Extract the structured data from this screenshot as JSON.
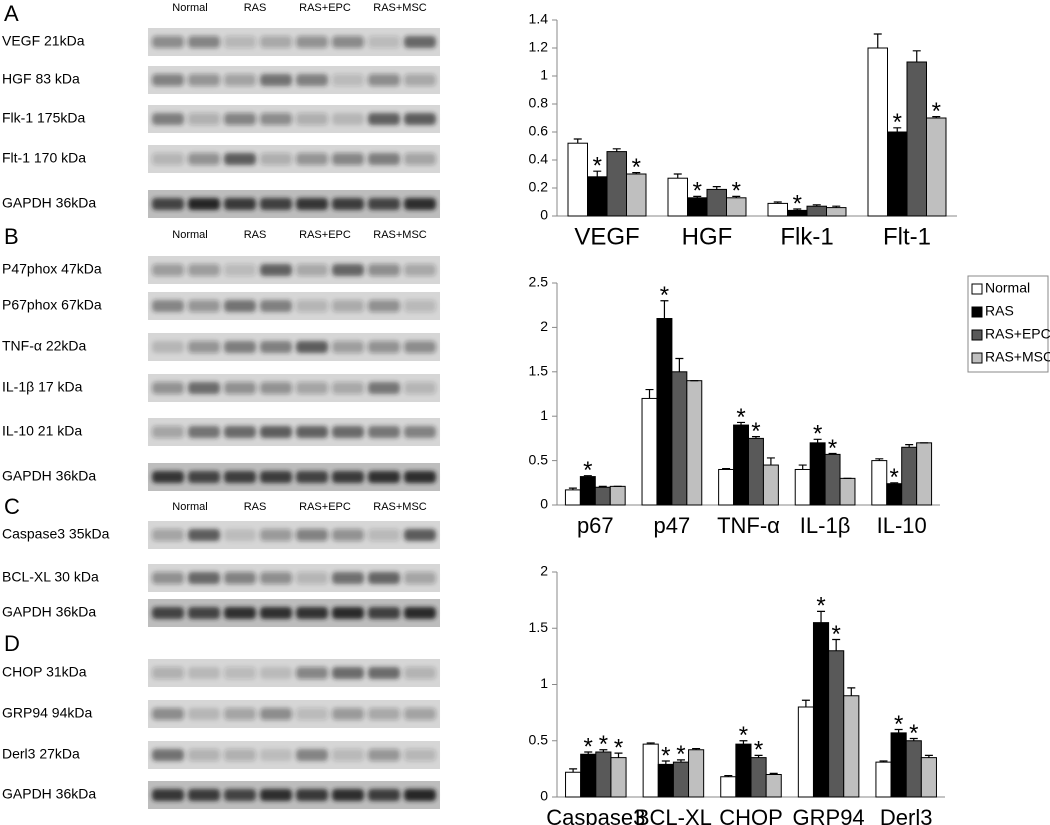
{
  "blots": [
    {
      "letter": "A",
      "lanes": [
        "Normal",
        "RAS",
        "RAS+EPC",
        "RAS+MSC"
      ],
      "rows": [
        "VEGF 21kDa",
        "HGF 83 kDa",
        "Flk-1 175kDa",
        "Flt-1 170 kDa",
        "GAPDH 36kDa"
      ]
    },
    {
      "letter": "B",
      "lanes": [
        "Normal",
        "RAS",
        "RAS+EPC",
        "RAS+MSC"
      ],
      "rows": [
        "P47phox 47kDa",
        "P67phox 67kDa",
        "TNF-α 22kDa",
        "IL-1β 17 kDa",
        "IL-10 21 kDa",
        "GAPDH 36kDa"
      ]
    },
    {
      "letter": "C",
      "lanes": [
        "Normal",
        "RAS",
        "RAS+EPC",
        "RAS+MSC"
      ],
      "rows": [
        "Caspase3 35kDa",
        "BCL-XL 30 kDa",
        "GAPDH 36kDa"
      ]
    },
    {
      "letter": "D",
      "rows": [
        "CHOP 31kDa",
        "GRP94 94kDa",
        "Derl3 27kDa",
        "GAPDH 36kDa"
      ]
    }
  ],
  "chart_data": [
    {
      "type": "bar",
      "categories": [
        "VEGF",
        "HGF",
        "Flk-1",
        "Flt-1"
      ],
      "ylim": [
        0,
        1.4
      ],
      "yticks": [
        0,
        0.2,
        0.4,
        0.6,
        0.8,
        1,
        1.2,
        1.4
      ],
      "series": [
        {
          "color": "#ffffff",
          "values": [
            0.52,
            0.27,
            0.09,
            1.2
          ],
          "errors": [
            0.03,
            0.03,
            0.01,
            0.1
          ],
          "significance": [
            null,
            null,
            null,
            null
          ]
        },
        {
          "color": "#000000",
          "values": [
            0.28,
            0.13,
            0.04,
            0.6
          ],
          "errors": [
            0.04,
            0.01,
            0.01,
            0.03
          ],
          "significance": [
            "*",
            "*",
            "*",
            "*"
          ]
        },
        {
          "color": "#595959",
          "values": [
            0.46,
            0.19,
            0.07,
            1.1
          ],
          "errors": [
            0.02,
            0.02,
            0.01,
            0.08
          ],
          "significance": [
            null,
            null,
            null,
            null
          ]
        },
        {
          "color": "#bfbfbf",
          "values": [
            0.3,
            0.13,
            0.06,
            0.7
          ],
          "errors": [
            0.01,
            0.01,
            0.01,
            0.01
          ],
          "significance": [
            "*",
            "*",
            null,
            "*"
          ]
        }
      ]
    },
    {
      "type": "bar",
      "categories": [
        "p67",
        "p47",
        "TNF-α",
        "IL-1β",
        "IL-10"
      ],
      "ylim": [
        0,
        2.5
      ],
      "yticks": [
        0,
        0.5,
        1,
        1.5,
        2,
        2.5
      ],
      "legend": "upper right",
      "series": [
        {
          "name": "Normal",
          "color": "#ffffff",
          "values": [
            0.17,
            1.2,
            0.4,
            0.4,
            0.5
          ],
          "errors": [
            0.02,
            0.1,
            0.01,
            0.05,
            0.02
          ],
          "significance": [
            null,
            null,
            null,
            null,
            null
          ]
        },
        {
          "name": "RAS",
          "color": "#000000",
          "values": [
            0.32,
            2.1,
            0.9,
            0.7,
            0.24
          ],
          "errors": [
            0.01,
            0.2,
            0.03,
            0.04,
            0.01
          ],
          "significance": [
            "*",
            "*",
            "*",
            "*",
            "*"
          ]
        },
        {
          "name": "RAS+EPC",
          "color": "#595959",
          "values": [
            0.2,
            1.5,
            0.75,
            0.57,
            0.65
          ],
          "errors": [
            0.01,
            0.15,
            0.02,
            0.01,
            0.03
          ],
          "significance": [
            null,
            null,
            "*",
            "*",
            null
          ]
        },
        {
          "name": "RAS+MSC",
          "color": "#bfbfbf",
          "values": [
            0.21,
            1.4,
            0.45,
            0.3,
            0.7
          ],
          "errors": [
            0,
            0,
            0.08,
            0,
            0
          ],
          "significance": [
            null,
            null,
            null,
            null,
            null
          ]
        }
      ]
    },
    {
      "type": "bar",
      "categories": [
        "Caspase3",
        "BCL-XL",
        "CHOP",
        "GRP94",
        "Derl3"
      ],
      "ylim": [
        0,
        2
      ],
      "yticks": [
        0,
        0.5,
        1,
        1.5,
        2
      ],
      "series": [
        {
          "color": "#ffffff",
          "values": [
            0.22,
            0.47,
            0.18,
            0.8,
            0.31
          ],
          "errors": [
            0.03,
            0.01,
            0.01,
            0.06,
            0.01
          ],
          "significance": [
            null,
            null,
            null,
            null,
            null
          ]
        },
        {
          "color": "#000000",
          "values": [
            0.38,
            0.29,
            0.47,
            1.55,
            0.57
          ],
          "errors": [
            0.02,
            0.03,
            0.03,
            0.1,
            0.03
          ],
          "significance": [
            "*",
            "*",
            "*",
            "*",
            "*"
          ]
        },
        {
          "color": "#595959",
          "values": [
            0.4,
            0.31,
            0.35,
            1.3,
            0.5
          ],
          "errors": [
            0.02,
            0.02,
            0.02,
            0.1,
            0.02
          ],
          "significance": [
            "*",
            "*",
            "*",
            "*",
            "*"
          ]
        },
        {
          "color": "#bfbfbf",
          "values": [
            0.35,
            0.42,
            0.2,
            0.9,
            0.35
          ],
          "errors": [
            0.04,
            0.01,
            0.01,
            0.07,
            0.02
          ],
          "significance": [
            "*",
            null,
            null,
            null,
            null
          ]
        }
      ]
    }
  ]
}
